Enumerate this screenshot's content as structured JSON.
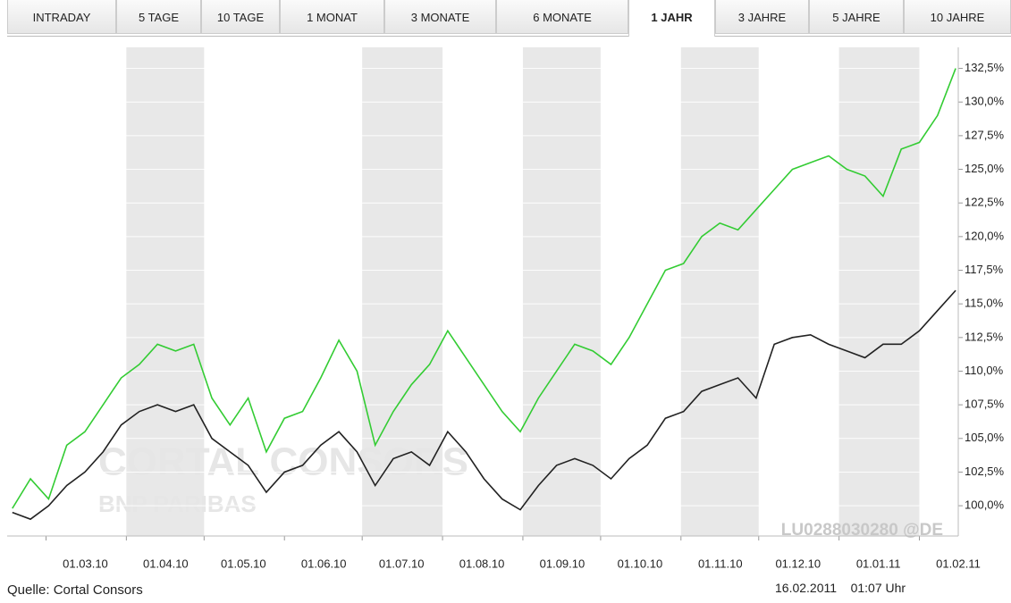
{
  "tabs": [
    "INTRADAY",
    "5 TAGE",
    "10 TAGE",
    "1 MONAT",
    "3 MONATE",
    "6 MONATE",
    "1 JAHR",
    "3 JAHRE",
    "5 JAHRE",
    "10 JAHRE"
  ],
  "active_tab": 6,
  "source": "Quelle: Cortal Consors",
  "timestamp": "16.02.2011    01:07 Uhr",
  "watermark": [
    "CORTAL CONSORS",
    "BNP PARIBAS"
  ],
  "isin": "LU0288030280 @DE",
  "chart_data": {
    "type": "line",
    "x": [
      "2010-02-16",
      "2010-02-23",
      "2010-03-02",
      "2010-03-09",
      "2010-03-16",
      "2010-03-23",
      "2010-03-30",
      "2010-04-06",
      "2010-04-13",
      "2010-04-20",
      "2010-04-27",
      "2010-05-04",
      "2010-05-11",
      "2010-05-18",
      "2010-05-25",
      "2010-06-01",
      "2010-06-08",
      "2010-06-15",
      "2010-06-22",
      "2010-06-29",
      "2010-07-06",
      "2010-07-13",
      "2010-07-20",
      "2010-07-27",
      "2010-08-03",
      "2010-08-10",
      "2010-08-17",
      "2010-08-24",
      "2010-08-31",
      "2010-09-07",
      "2010-09-14",
      "2010-09-21",
      "2010-09-28",
      "2010-10-05",
      "2010-10-12",
      "2010-10-19",
      "2010-10-26",
      "2010-11-02",
      "2010-11-09",
      "2010-11-16",
      "2010-11-23",
      "2010-11-30",
      "2010-12-07",
      "2010-12-14",
      "2010-12-21",
      "2010-12-28",
      "2011-01-04",
      "2011-01-11",
      "2011-01-18",
      "2011-01-25",
      "2011-02-01",
      "2011-02-08",
      "2011-02-15"
    ],
    "series": [
      {
        "color": "#33cc33",
        "values": [
          99.8,
          102,
          100.5,
          104.5,
          105.5,
          107.5,
          109.5,
          110.5,
          112,
          111.5,
          112,
          108,
          106,
          108,
          104,
          106.5,
          107,
          109.5,
          112.3,
          110,
          104.5,
          107,
          109,
          110.5,
          113,
          111,
          109,
          107,
          105.5,
          108,
          110,
          112,
          111.5,
          110.5,
          112.5,
          115,
          117.5,
          118,
          120,
          121,
          120.5,
          122,
          123.5,
          125,
          125.5,
          126,
          125,
          124.5,
          123,
          126.5,
          127,
          129,
          132.5
        ]
      },
      {
        "color": "#222222",
        "values": [
          99.5,
          99,
          100,
          101.5,
          102.5,
          104,
          106,
          107,
          107.5,
          107,
          107.5,
          105,
          104,
          103,
          101,
          102.5,
          103,
          104.5,
          105.5,
          104,
          101.5,
          103.5,
          104,
          103,
          105.5,
          104,
          102,
          100.5,
          99.7,
          101.5,
          103,
          103.5,
          103,
          102,
          103.5,
          104.5,
          106.5,
          107,
          108.5,
          109,
          109.5,
          108,
          112,
          112.5,
          112.7,
          112,
          111.5,
          111,
          112,
          112,
          113,
          114.5,
          116
        ]
      }
    ],
    "xlim": [
      "2010-02-14",
      "2011-02-16"
    ],
    "xticks": [
      {
        "value": "2010-03-01",
        "label": "01.03.10"
      },
      {
        "value": "2010-04-01",
        "label": "01.04.10"
      },
      {
        "value": "2010-05-01",
        "label": "01.05.10"
      },
      {
        "value": "2010-06-01",
        "label": "01.06.10"
      },
      {
        "value": "2010-07-01",
        "label": "01.07.10"
      },
      {
        "value": "2010-08-01",
        "label": "01.08.10"
      },
      {
        "value": "2010-09-01",
        "label": "01.09.10"
      },
      {
        "value": "2010-10-01",
        "label": "01.10.10"
      },
      {
        "value": "2010-11-01",
        "label": "01.11.10"
      },
      {
        "value": "2010-12-01",
        "label": "01.12.10"
      },
      {
        "value": "2011-01-01",
        "label": "01.01.11"
      },
      {
        "value": "2011-02-01",
        "label": "01.02.11"
      }
    ],
    "ylim": [
      97.75,
      133.4
    ],
    "yticks": [
      {
        "value": 100,
        "label": "100,0%"
      },
      {
        "value": 102.5,
        "label": "102,5%"
      },
      {
        "value": 105,
        "label": "105,0%"
      },
      {
        "value": 107.5,
        "label": "107,5%"
      },
      {
        "value": 110,
        "label": "110,0%"
      },
      {
        "value": 112.5,
        "label": "112,5%"
      },
      {
        "value": 115,
        "label": "115,0%"
      },
      {
        "value": 117.5,
        "label": "117,5%"
      },
      {
        "value": 120,
        "label": "120,0%"
      },
      {
        "value": 122.5,
        "label": "122,5%"
      },
      {
        "value": 125,
        "label": "125,0%"
      },
      {
        "value": 127.5,
        "label": "127,5%"
      },
      {
        "value": 130,
        "label": "130,0%"
      },
      {
        "value": 132.5,
        "label": "132,5%"
      }
    ],
    "grid": true
  }
}
